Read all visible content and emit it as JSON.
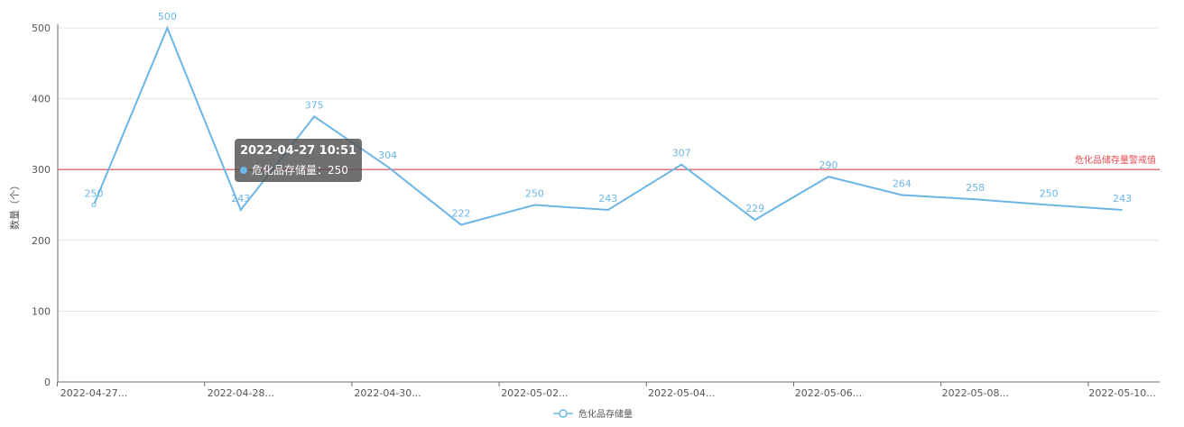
{
  "chart_data": {
    "type": "line",
    "title": "",
    "ylabel": "数量（个）",
    "xlabel": "",
    "ylim": [
      0,
      500
    ],
    "yticks": [
      0,
      100,
      200,
      300,
      400,
      500
    ],
    "x_tick_labels": [
      "2022-04-27...",
      "2022-04-28...",
      "2022-04-30...",
      "2022-05-02...",
      "2022-05-04...",
      "2022-05-06...",
      "2022-05-08...",
      "2022-05-10..."
    ],
    "series": [
      {
        "name": "危化品存储量",
        "color": "#6cb6e6",
        "values": [
          250,
          500,
          243,
          375,
          304,
          222,
          250,
          243,
          307,
          229,
          290,
          264,
          258,
          250,
          243
        ]
      }
    ],
    "mark_line": {
      "value": 300,
      "label": "危化品储存量警戒值",
      "color": "#e8484f"
    },
    "grid": true,
    "legend": {
      "position": "bottom-center"
    },
    "tooltip": {
      "title": "2022-04-27 10:51",
      "label": "危化品存储量：250"
    }
  }
}
